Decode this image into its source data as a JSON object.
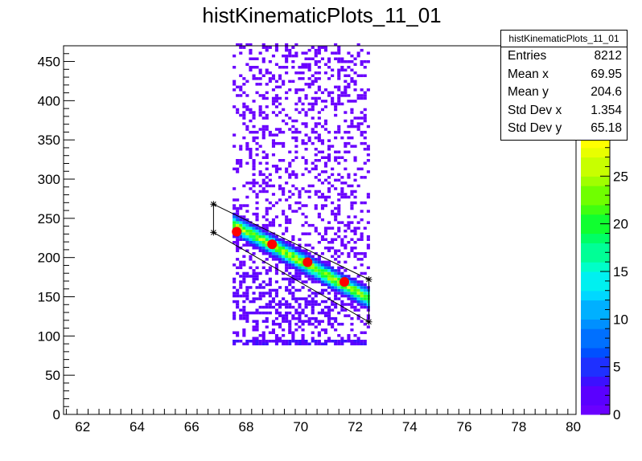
{
  "chart_data": {
    "type": "heatmap",
    "title": "histKinematicPlots_11_01",
    "xlim": [
      61.3,
      80.1
    ],
    "ylim": [
      0,
      470
    ],
    "x_ticks": [
      62,
      64,
      66,
      68,
      70,
      72,
      74,
      76,
      78,
      80
    ],
    "y_ticks": [
      0,
      50,
      100,
      150,
      200,
      250,
      300,
      350,
      400,
      450
    ],
    "z_ticks": [
      0,
      5,
      10,
      15,
      20,
      25
    ],
    "zlim": [
      0,
      30
    ],
    "density": {
      "x_range": [
        67.5,
        72.5
      ],
      "y_range": [
        88,
        470
      ],
      "band": {
        "x_start": 67.5,
        "y_start": 240,
        "x_end": 72.5,
        "y_end": 145,
        "width_y": 18
      },
      "peak_value": 28
    },
    "selection_polygon": [
      {
        "x": 66.8,
        "y": 268
      },
      {
        "x": 66.8,
        "y": 232
      },
      {
        "x": 72.5,
        "y": 118
      },
      {
        "x": 72.5,
        "y": 172
      },
      {
        "x": 66.8,
        "y": 268
      }
    ],
    "markers": [
      {
        "x": 67.65,
        "y": 233
      },
      {
        "x": 68.95,
        "y": 217
      },
      {
        "x": 70.25,
        "y": 194
      },
      {
        "x": 71.6,
        "y": 169
      }
    ],
    "stats": {
      "name": "histKinematicPlots_11_01",
      "rows": [
        {
          "label": "Entries",
          "value": "8212"
        },
        {
          "label": "Mean x",
          "value": "69.95"
        },
        {
          "label": "Mean y",
          "value": "204.6"
        },
        {
          "label": "Std Dev x",
          "value": "1.354"
        },
        {
          "label": "Std Dev y",
          "value": "65.18"
        }
      ]
    }
  }
}
